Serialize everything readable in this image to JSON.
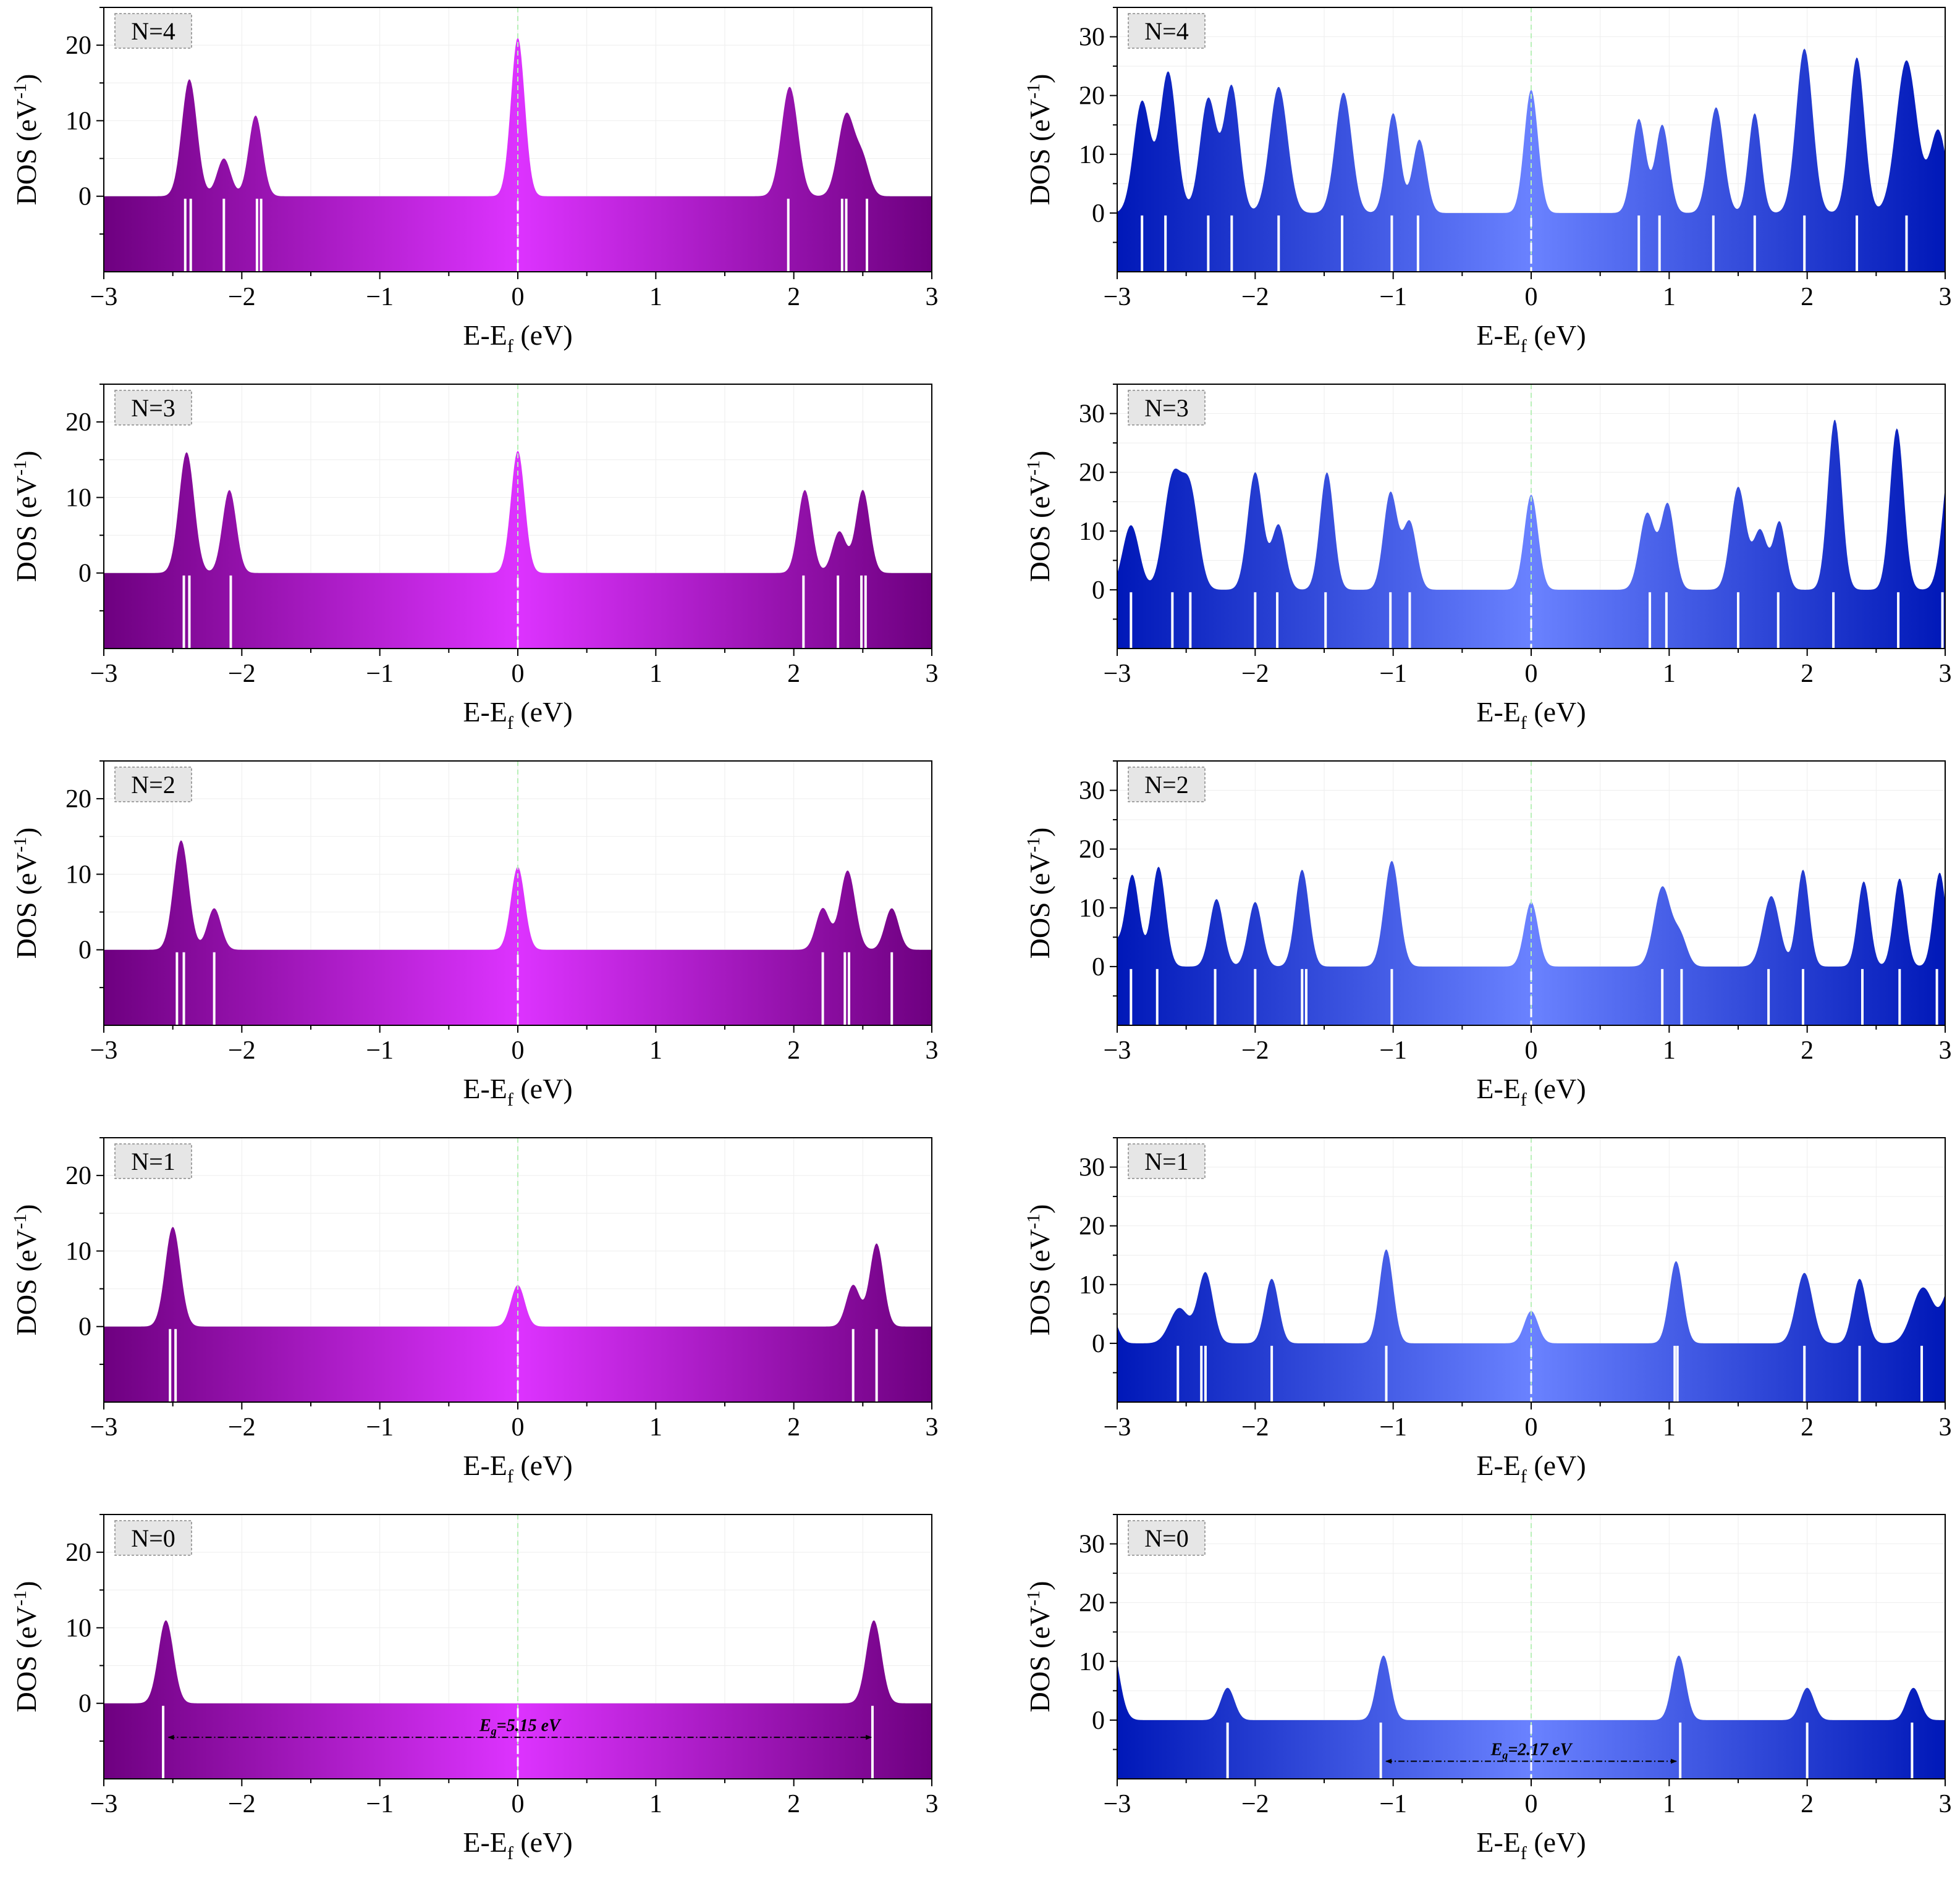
{
  "figure": {
    "columns": [
      {
        "name": "purple",
        "gradient": {
          "edge": "#6e0080",
          "center": "#dd33ff"
        }
      },
      {
        "name": "blue",
        "gradient": {
          "edge": "#0018b8",
          "center": "#6a82ff"
        }
      }
    ],
    "fermi_line_color": "#b8f0b8",
    "gap_annotations": [
      {
        "column": 0,
        "panel_label": "N=0",
        "text": "=5.15 eV",
        "symbol": "E",
        "subscript": "g",
        "from": -2.55,
        "to": 2.58
      },
      {
        "column": 1,
        "panel_label": "N=0",
        "text": "=2.17 eV",
        "symbol": "E",
        "subscript": "g",
        "from": -1.07,
        "to": 1.07
      }
    ]
  },
  "chart_data": [
    {
      "type": "area",
      "column": 0,
      "label": "N=4",
      "xlabel": "E-E",
      "xlabel_sub": "f",
      "xlabel_unit": " (eV)",
      "ylabel": "DOS (eV",
      "ylabel_sup": "-1",
      "ylabel_close": ")",
      "xlim": [
        -3,
        3
      ],
      "ylim": [
        -10,
        25
      ],
      "xticks": [
        "−3",
        "−2",
        "−1",
        "0",
        "1",
        "2",
        "3"
      ],
      "yticks": [
        "0",
        "10",
        "20"
      ],
      "peaks": [
        {
          "e": -2.38,
          "h": 15.5,
          "w": 0.055
        },
        {
          "e": -2.13,
          "h": 5.0,
          "w": 0.05
        },
        {
          "e": -1.9,
          "h": 10.7,
          "w": 0.05
        },
        {
          "e": 0.0,
          "h": 21.0,
          "w": 0.05
        },
        {
          "e": 1.97,
          "h": 14.5,
          "w": 0.06
        },
        {
          "e": 2.38,
          "h": 10.8,
          "w": 0.06
        },
        {
          "e": 2.5,
          "h": 4.5,
          "w": 0.05
        }
      ],
      "levels": [
        -2.41,
        -2.37,
        -2.13,
        -1.89,
        -1.86,
        0.0,
        1.96,
        2.35,
        2.38,
        2.53
      ]
    },
    {
      "type": "area",
      "column": 1,
      "label": "N=4",
      "xlabel": "E-E",
      "xlabel_sub": "f",
      "xlabel_unit": " (eV)",
      "ylabel": "DOS (eV",
      "ylabel_sup": "-1",
      "ylabel_close": ")",
      "xlim": [
        -3,
        3
      ],
      "ylim": [
        -10,
        35
      ],
      "xticks": [
        "−3",
        "−2",
        "−1",
        "0",
        "1",
        "2",
        "3"
      ],
      "yticks": [
        "0",
        "10",
        "20",
        "30"
      ],
      "peaks": [
        {
          "e": -2.82,
          "h": 19.0,
          "w": 0.06
        },
        {
          "e": -2.63,
          "h": 24.0,
          "w": 0.06
        },
        {
          "e": -2.34,
          "h": 19.5,
          "w": 0.06
        },
        {
          "e": -2.17,
          "h": 21.5,
          "w": 0.055
        },
        {
          "e": -1.83,
          "h": 21.5,
          "w": 0.065
        },
        {
          "e": -1.36,
          "h": 20.5,
          "w": 0.06
        },
        {
          "e": -1.0,
          "h": 17.0,
          "w": 0.05
        },
        {
          "e": -0.81,
          "h": 12.5,
          "w": 0.05
        },
        {
          "e": 0.0,
          "h": 21.0,
          "w": 0.05
        },
        {
          "e": 0.78,
          "h": 16.0,
          "w": 0.05
        },
        {
          "e": 0.95,
          "h": 15.0,
          "w": 0.05
        },
        {
          "e": 1.34,
          "h": 18.0,
          "w": 0.055
        },
        {
          "e": 1.62,
          "h": 17.0,
          "w": 0.045
        },
        {
          "e": 1.98,
          "h": 28.0,
          "w": 0.06
        },
        {
          "e": 2.36,
          "h": 26.5,
          "w": 0.055
        },
        {
          "e": 2.72,
          "h": 26.0,
          "w": 0.075
        },
        {
          "e": 2.95,
          "h": 14.0,
          "w": 0.06
        }
      ],
      "levels": [
        -2.82,
        -2.65,
        -2.34,
        -2.17,
        -1.83,
        -1.37,
        -1.01,
        -0.82,
        0.0,
        0.78,
        0.93,
        1.32,
        1.62,
        1.98,
        2.36,
        2.72
      ]
    },
    {
      "type": "area",
      "column": 0,
      "label": "N=3",
      "xlabel": "E-E",
      "xlabel_sub": "f",
      "xlabel_unit": " (eV)",
      "ylabel": "DOS (eV",
      "ylabel_sup": "-1",
      "ylabel_close": ")",
      "xlim": [
        -3,
        3
      ],
      "ylim": [
        -10,
        25
      ],
      "xticks": [
        "−3",
        "−2",
        "−1",
        "0",
        "1",
        "2",
        "3"
      ],
      "yticks": [
        "0",
        "10",
        "20"
      ],
      "peaks": [
        {
          "e": -2.4,
          "h": 16.0,
          "w": 0.055
        },
        {
          "e": -2.09,
          "h": 11.0,
          "w": 0.05
        },
        {
          "e": 0.0,
          "h": 16.2,
          "w": 0.05
        },
        {
          "e": 2.08,
          "h": 11.0,
          "w": 0.05
        },
        {
          "e": 2.33,
          "h": 5.5,
          "w": 0.05
        },
        {
          "e": 2.5,
          "h": 11.0,
          "w": 0.05
        }
      ],
      "levels": [
        -2.42,
        -2.38,
        -2.08,
        0.0,
        2.07,
        2.32,
        2.49,
        2.52
      ]
    },
    {
      "type": "area",
      "column": 1,
      "label": "N=3",
      "xlabel": "E-E",
      "xlabel_sub": "f",
      "xlabel_unit": " (eV)",
      "ylabel": "DOS (eV",
      "ylabel_sup": "-1",
      "ylabel_close": ")",
      "xlim": [
        -3,
        3
      ],
      "ylim": [
        -10,
        35
      ],
      "xticks": [
        "−3",
        "−2",
        "−1",
        "0",
        "1",
        "2",
        "3"
      ],
      "yticks": [
        "0",
        "10",
        "20",
        "30"
      ],
      "peaks": [
        {
          "e": -2.9,
          "h": 11.0,
          "w": 0.06
        },
        {
          "e": -2.6,
          "h": 18.5,
          "w": 0.065
        },
        {
          "e": -2.47,
          "h": 16.0,
          "w": 0.06
        },
        {
          "e": -2.0,
          "h": 20.0,
          "w": 0.055
        },
        {
          "e": -1.83,
          "h": 11.0,
          "w": 0.05
        },
        {
          "e": -1.48,
          "h": 20.0,
          "w": 0.05
        },
        {
          "e": -1.02,
          "h": 16.5,
          "w": 0.05
        },
        {
          "e": -0.88,
          "h": 11.5,
          "w": 0.05
        },
        {
          "e": 0.0,
          "h": 16.2,
          "w": 0.05
        },
        {
          "e": 0.84,
          "h": 13.0,
          "w": 0.055
        },
        {
          "e": 0.99,
          "h": 14.5,
          "w": 0.05
        },
        {
          "e": 1.5,
          "h": 17.5,
          "w": 0.055
        },
        {
          "e": 1.66,
          "h": 10.0,
          "w": 0.05
        },
        {
          "e": 1.8,
          "h": 11.5,
          "w": 0.045
        },
        {
          "e": 2.2,
          "h": 29.0,
          "w": 0.05
        },
        {
          "e": 2.65,
          "h": 27.5,
          "w": 0.05
        },
        {
          "e": 3.05,
          "h": 25.0,
          "w": 0.06
        }
      ],
      "levels": [
        -2.9,
        -2.6,
        -2.47,
        -2.0,
        -1.84,
        -1.49,
        -1.02,
        -0.88,
        0.0,
        0.86,
        0.98,
        1.5,
        1.79,
        2.19,
        2.66,
        2.98
      ]
    },
    {
      "type": "area",
      "column": 0,
      "label": "N=2",
      "xlabel": "E-E",
      "xlabel_sub": "f",
      "xlabel_unit": " (eV)",
      "ylabel": "DOS (eV",
      "ylabel_sup": "-1",
      "ylabel_close": ")",
      "xlim": [
        -3,
        3
      ],
      "ylim": [
        -10,
        25
      ],
      "xticks": [
        "−3",
        "−2",
        "−1",
        "0",
        "1",
        "2",
        "3"
      ],
      "yticks": [
        "0",
        "10",
        "20"
      ],
      "peaks": [
        {
          "e": -2.44,
          "h": 14.5,
          "w": 0.055
        },
        {
          "e": -2.2,
          "h": 5.5,
          "w": 0.05
        },
        {
          "e": 0.0,
          "h": 11.0,
          "w": 0.05
        },
        {
          "e": 2.21,
          "h": 5.5,
          "w": 0.05
        },
        {
          "e": 2.39,
          "h": 10.5,
          "w": 0.055
        },
        {
          "e": 2.71,
          "h": 5.5,
          "w": 0.05
        }
      ],
      "levels": [
        -2.47,
        -2.42,
        -2.2,
        0.0,
        2.21,
        2.37,
        2.4,
        2.71
      ]
    },
    {
      "type": "area",
      "column": 1,
      "label": "N=2",
      "xlabel": "E-E",
      "xlabel_sub": "f",
      "xlabel_unit": " (eV)",
      "ylabel": "DOS (eV",
      "ylabel_sup": "-1",
      "ylabel_close": ")",
      "xlim": [
        -3,
        3
      ],
      "ylim": [
        -10,
        35
      ],
      "xticks": [
        "−3",
        "−2",
        "−1",
        "0",
        "1",
        "2",
        "3"
      ],
      "yticks": [
        "0",
        "10",
        "20",
        "30"
      ],
      "peaks": [
        {
          "e": -3.05,
          "h": 5.0,
          "w": 0.06
        },
        {
          "e": -2.89,
          "h": 15.5,
          "w": 0.05
        },
        {
          "e": -2.7,
          "h": 17.0,
          "w": 0.05
        },
        {
          "e": -2.28,
          "h": 11.5,
          "w": 0.05
        },
        {
          "e": -2.0,
          "h": 11.0,
          "w": 0.05
        },
        {
          "e": -1.66,
          "h": 16.5,
          "w": 0.05
        },
        {
          "e": -1.01,
          "h": 18.0,
          "w": 0.055
        },
        {
          "e": 0.0,
          "h": 11.0,
          "w": 0.05
        },
        {
          "e": 0.95,
          "h": 13.5,
          "w": 0.06
        },
        {
          "e": 1.08,
          "h": 5.0,
          "w": 0.05
        },
        {
          "e": 1.74,
          "h": 12.0,
          "w": 0.06
        },
        {
          "e": 1.97,
          "h": 16.5,
          "w": 0.045
        },
        {
          "e": 2.41,
          "h": 14.5,
          "w": 0.045
        },
        {
          "e": 2.67,
          "h": 15.0,
          "w": 0.045
        },
        {
          "e": 2.96,
          "h": 16.0,
          "w": 0.045
        }
      ],
      "levels": [
        -2.9,
        -2.71,
        -2.29,
        -2.0,
        -1.66,
        -1.63,
        -1.01,
        0.0,
        0.95,
        1.09,
        1.72,
        1.97,
        2.4,
        2.67,
        2.94
      ]
    },
    {
      "type": "area",
      "column": 0,
      "label": "N=1",
      "xlabel": "E-E",
      "xlabel_sub": "f",
      "xlabel_unit": " (eV)",
      "ylabel": "DOS (eV",
      "ylabel_sup": "-1",
      "ylabel_close": ")",
      "xlim": [
        -3,
        3
      ],
      "ylim": [
        -10,
        25
      ],
      "xticks": [
        "−3",
        "−2",
        "−1",
        "0",
        "1",
        "2",
        "3"
      ],
      "yticks": [
        "0",
        "10",
        "20"
      ],
      "peaks": [
        {
          "e": -2.5,
          "h": 13.2,
          "w": 0.055
        },
        {
          "e": 0.0,
          "h": 5.5,
          "w": 0.05
        },
        {
          "e": 2.43,
          "h": 5.5,
          "w": 0.05
        },
        {
          "e": 2.6,
          "h": 11.0,
          "w": 0.05
        }
      ],
      "levels": [
        -2.52,
        -2.48,
        0.0,
        2.43,
        2.6
      ]
    },
    {
      "type": "area",
      "column": 1,
      "label": "N=1",
      "xlabel": "E-E",
      "xlabel_sub": "f",
      "xlabel_unit": " (eV)",
      "ylabel": "DOS (eV",
      "ylabel_sup": "-1",
      "ylabel_close": ")",
      "xlim": [
        -3,
        3
      ],
      "ylim": [
        -10,
        35
      ],
      "xticks": [
        "−3",
        "−2",
        "−1",
        "0",
        "1",
        "2",
        "3"
      ],
      "yticks": [
        "0",
        "10",
        "20",
        "30"
      ],
      "peaks": [
        {
          "e": -3.05,
          "h": 5.0,
          "w": 0.05
        },
        {
          "e": -2.55,
          "h": 6.0,
          "w": 0.07
        },
        {
          "e": -2.36,
          "h": 12.0,
          "w": 0.055
        },
        {
          "e": -1.88,
          "h": 11.0,
          "w": 0.05
        },
        {
          "e": -1.05,
          "h": 16.0,
          "w": 0.05
        },
        {
          "e": 0.0,
          "h": 5.5,
          "w": 0.05
        },
        {
          "e": 1.05,
          "h": 14.0,
          "w": 0.05
        },
        {
          "e": 1.98,
          "h": 12.0,
          "w": 0.06
        },
        {
          "e": 2.38,
          "h": 11.0,
          "w": 0.05
        },
        {
          "e": 2.84,
          "h": 9.5,
          "w": 0.08
        },
        {
          "e": 3.05,
          "h": 10.0,
          "w": 0.06
        }
      ],
      "levels": [
        -2.56,
        -2.39,
        -2.36,
        -1.88,
        -1.05,
        0.0,
        1.04,
        1.06,
        1.98,
        2.38,
        2.83
      ]
    },
    {
      "type": "area",
      "column": 0,
      "label": "N=0",
      "xlabel": "E-E",
      "xlabel_sub": "f",
      "xlabel_unit": " (eV)",
      "ylabel": "DOS (eV",
      "ylabel_sup": "-1",
      "ylabel_close": ")",
      "xlim": [
        -3,
        3
      ],
      "ylim": [
        -10,
        25
      ],
      "xticks": [
        "−3",
        "−2",
        "−1",
        "0",
        "1",
        "2",
        "3"
      ],
      "yticks": [
        "0",
        "10",
        "20"
      ],
      "peaks": [
        {
          "e": -2.55,
          "h": 11.0,
          "w": 0.055
        },
        {
          "e": 2.58,
          "h": 11.0,
          "w": 0.055
        }
      ],
      "levels": [
        -2.57,
        2.57
      ]
    },
    {
      "type": "area",
      "column": 1,
      "label": "N=0",
      "xlabel": "E-E",
      "xlabel_sub": "f",
      "xlabel_unit": " (eV)",
      "ylabel": "DOS (eV",
      "ylabel_sup": "-1",
      "ylabel_close": ")",
      "xlim": [
        -3,
        3
      ],
      "ylim": [
        -10,
        35
      ],
      "xticks": [
        "−3",
        "−2",
        "−1",
        "0",
        "1",
        "2",
        "3"
      ],
      "yticks": [
        "0",
        "10",
        "20",
        "30"
      ],
      "peaks": [
        {
          "e": -3.05,
          "h": 14.0,
          "w": 0.06
        },
        {
          "e": -2.2,
          "h": 5.5,
          "w": 0.05
        },
        {
          "e": -1.07,
          "h": 11.0,
          "w": 0.05
        },
        {
          "e": 1.07,
          "h": 11.0,
          "w": 0.05
        },
        {
          "e": 2.0,
          "h": 5.5,
          "w": 0.05
        },
        {
          "e": 2.77,
          "h": 5.5,
          "w": 0.05
        }
      ],
      "levels": [
        -2.2,
        -1.09,
        1.08,
        2.0,
        2.76
      ]
    }
  ]
}
